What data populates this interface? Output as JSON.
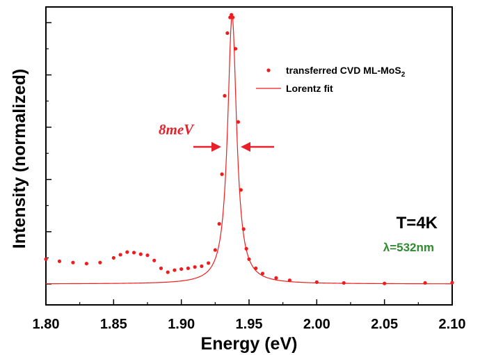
{
  "chart_data": {
    "type": "scatter",
    "xlabel": "Energy (eV)",
    "ylabel": "Intensity (normalized)",
    "xlim": [
      1.8,
      2.1
    ],
    "ylim": [
      -0.08,
      1.06
    ],
    "x_ticks": [
      "1.80",
      "1.85",
      "1.90",
      "1.95",
      "2.00",
      "2.05",
      "2.10"
    ],
    "y_tick_labels_shown": false,
    "grid": false,
    "legend_position": "top-right",
    "legend": {
      "data_label_main": "transferred CVD ML-MoS",
      "data_label_subscript": "2",
      "fit_label": "Lorentz fit"
    },
    "annotations": {
      "fwhm": "8meV",
      "temperature": "T=4K",
      "wavelength": "λ=532nm"
    },
    "series": [
      {
        "name": "transferred CVD ML-MoS2",
        "style": "markers",
        "x": [
          1.8,
          1.81,
          1.82,
          1.83,
          1.84,
          1.85,
          1.855,
          1.86,
          1.865,
          1.87,
          1.875,
          1.88,
          1.885,
          1.89,
          1.895,
          1.9,
          1.905,
          1.91,
          1.915,
          1.92,
          1.925,
          1.928,
          1.93,
          1.932,
          1.934,
          1.936,
          1.937,
          1.938,
          1.94,
          1.942,
          1.944,
          1.946,
          1.948,
          1.95,
          1.955,
          1.96,
          1.97,
          1.98,
          2.0,
          2.02,
          2.05,
          2.08,
          2.1
        ],
        "y": [
          0.095,
          0.087,
          0.082,
          0.078,
          0.082,
          0.1,
          0.112,
          0.122,
          0.12,
          0.114,
          0.11,
          0.09,
          0.06,
          0.045,
          0.053,
          0.057,
          0.06,
          0.065,
          0.068,
          0.08,
          0.13,
          0.23,
          0.42,
          0.72,
          0.96,
          1.02,
          1.03,
          1.02,
          0.9,
          0.62,
          0.36,
          0.21,
          0.135,
          0.095,
          0.06,
          0.04,
          0.023,
          0.014,
          0.007,
          0.004,
          0.002,
          0.004,
          0.005
        ]
      },
      {
        "name": "Lorentz fit",
        "style": "line",
        "center": 1.9375,
        "fwhm": 0.008,
        "amplitude": 1.03,
        "offset": 0.0
      }
    ]
  },
  "colors": {
    "data": "#ee1c1c",
    "fit": "#ee1c1c",
    "axis": "#000000",
    "fwhm_text": "#e8202a",
    "wavelength_text": "#2e8b2e"
  }
}
